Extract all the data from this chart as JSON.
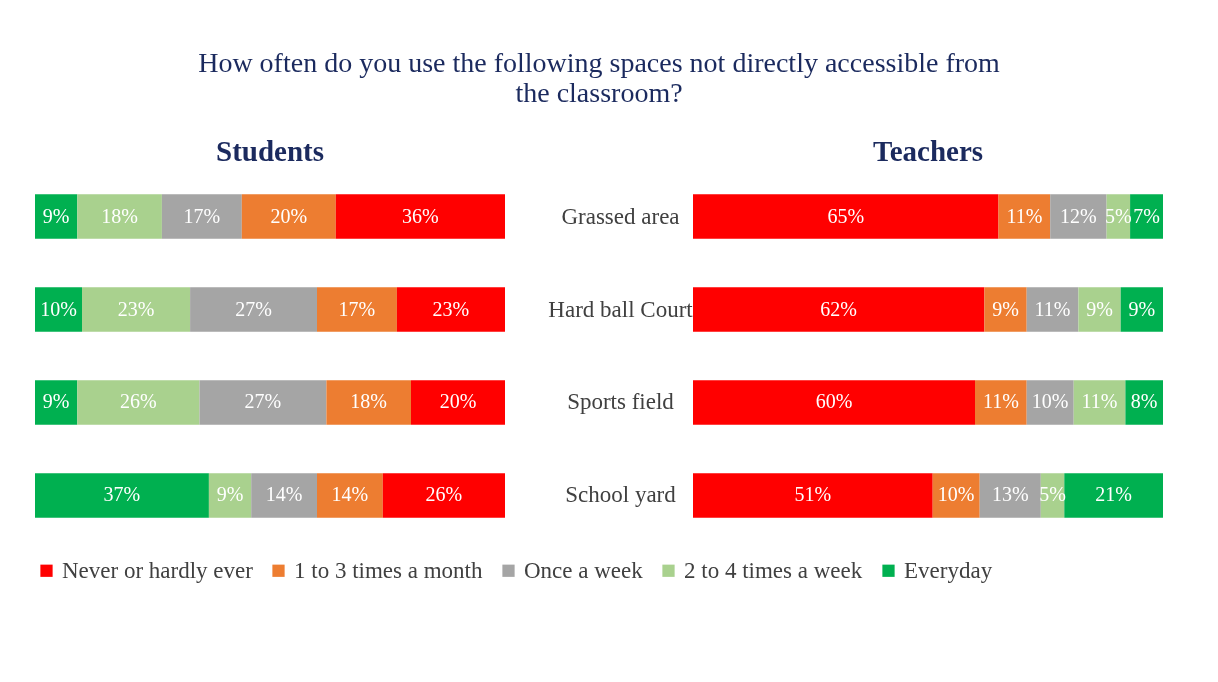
{
  "chart_data": [
    {
      "type": "bar",
      "orientation": "horizontal",
      "stacked": true,
      "title": "Students",
      "annotations": [
        "How often do you use the following spaces not directly accessible from the classroom?"
      ],
      "categories": [
        "Grassed area",
        "Hard ball Court",
        "Sports field",
        "School yard"
      ],
      "xlim": [
        0,
        100
      ],
      "tick_labels": "y",
      "grid": false,
      "legend": "bottom",
      "series": [
        {
          "name": "Everyday",
          "color": "#00b050",
          "values": [
            9,
            10,
            9,
            37
          ],
          "value_labels": [
            "9%",
            "10%",
            "9%",
            "37%"
          ]
        },
        {
          "name": "2 to 4 times a week",
          "color": "#a9d18e",
          "values": [
            18,
            23,
            26,
            9
          ],
          "value_labels": [
            "18%",
            "23%",
            "26%",
            "9%"
          ]
        },
        {
          "name": "Once a week",
          "color": "#a5a5a5",
          "values": [
            17,
            27,
            27,
            14
          ],
          "value_labels": [
            "17%",
            "27%",
            "27%",
            "14%"
          ]
        },
        {
          "name": "1 to 3 times a month",
          "color": "#ed7d31",
          "values": [
            20,
            17,
            18,
            14
          ],
          "value_labels": [
            "20%",
            "17%",
            "18%",
            "14%"
          ]
        },
        {
          "name": "Never or hardly ever",
          "color": "#ff0000",
          "values": [
            36,
            23,
            20,
            26
          ],
          "value_labels": [
            "36%",
            "23%",
            "20%",
            "26%"
          ]
        }
      ]
    },
    {
      "type": "bar",
      "orientation": "horizontal",
      "stacked": true,
      "title": "Teachers",
      "categories": [
        "Grassed area",
        "Hard ball Court",
        "Sports field",
        "School yard"
      ],
      "xlim": [
        0,
        100
      ],
      "tick_labels": false,
      "grid": false,
      "legend": "bottom",
      "series": [
        {
          "name": "Never or hardly ever",
          "color": "#ff0000",
          "values": [
            65,
            62,
            60,
            51
          ],
          "value_labels": [
            "65%",
            "62%",
            "60%",
            "51%"
          ]
        },
        {
          "name": "1 to 3 times a month",
          "color": "#ed7d31",
          "values": [
            11,
            9,
            11,
            10
          ],
          "value_labels": [
            "11%",
            "9%",
            "11%",
            "10%"
          ]
        },
        {
          "name": "Once a week",
          "color": "#a5a5a5",
          "values": [
            12,
            11,
            10,
            13
          ],
          "value_labels": [
            "12%",
            "11%",
            "10%",
            "13%"
          ]
        },
        {
          "name": "2 to 4 times a week",
          "color": "#a9d18e",
          "values": [
            5,
            9,
            11,
            5
          ],
          "value_labels": [
            "5%",
            "9%",
            "11%",
            "5%"
          ]
        },
        {
          "name": "Everyday",
          "color": "#00b050",
          "values": [
            7,
            9,
            8,
            21
          ],
          "value_labels": [
            "7%",
            "9%",
            "8%",
            "21%"
          ]
        }
      ]
    }
  ]
}
